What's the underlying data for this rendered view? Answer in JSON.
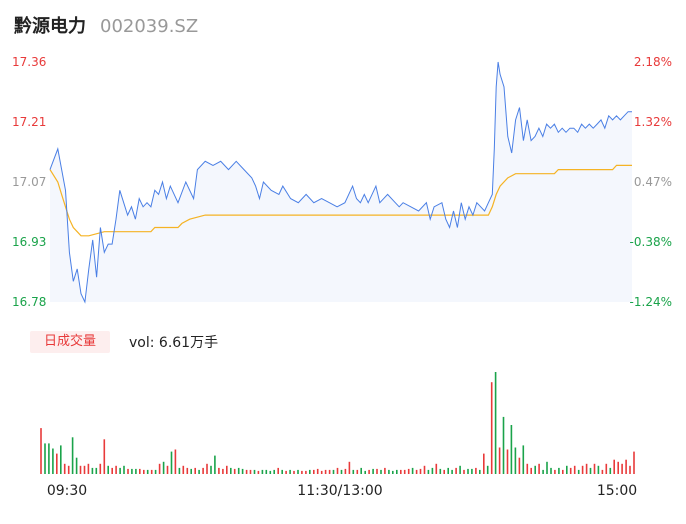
{
  "header": {
    "name": "黔源电力",
    "code": "002039.SZ"
  },
  "colors": {
    "price_line": "#4a7fe5",
    "avg_line": "#f5b324",
    "up": "#e83a3a",
    "down": "#1aa34a",
    "neutral": "#999999",
    "area_fill": "#f4f7fd"
  },
  "chart_data": {
    "type": "line",
    "price_axis": {
      "ylim": [
        16.78,
        17.36
      ],
      "ticks": [
        "17.36",
        "17.21",
        "17.07",
        "16.93",
        "16.78"
      ],
      "pct_ticks": [
        "2.18%",
        "1.32%",
        "0.47%",
        "-0.38%",
        "-1.24%"
      ]
    },
    "time_labels": [
      "09:30",
      "11:30/13:00",
      "15:00"
    ],
    "price_series": [
      [
        0,
        17.1
      ],
      [
        2,
        17.15
      ],
      [
        4,
        17.05
      ],
      [
        5,
        16.9
      ],
      [
        6,
        16.83
      ],
      [
        7,
        16.86
      ],
      [
        8,
        16.8
      ],
      [
        9,
        16.78
      ],
      [
        10,
        16.86
      ],
      [
        11,
        16.93
      ],
      [
        12,
        16.84
      ],
      [
        13,
        16.96
      ],
      [
        14,
        16.9
      ],
      [
        15,
        16.92
      ],
      [
        16,
        16.92
      ],
      [
        17,
        16.98
      ],
      [
        18,
        17.05
      ],
      [
        19,
        17.02
      ],
      [
        20,
        16.99
      ],
      [
        21,
        17.01
      ],
      [
        22,
        16.98
      ],
      [
        23,
        17.03
      ],
      [
        24,
        17.01
      ],
      [
        25,
        17.02
      ],
      [
        26,
        17.01
      ],
      [
        27,
        17.05
      ],
      [
        28,
        17.04
      ],
      [
        29,
        17.07
      ],
      [
        30,
        17.03
      ],
      [
        31,
        17.06
      ],
      [
        33,
        17.02
      ],
      [
        35,
        17.07
      ],
      [
        37,
        17.03
      ],
      [
        38,
        17.1
      ],
      [
        40,
        17.12
      ],
      [
        42,
        17.11
      ],
      [
        44,
        17.12
      ],
      [
        46,
        17.1
      ],
      [
        48,
        17.12
      ],
      [
        50,
        17.1
      ],
      [
        52,
        17.08
      ],
      [
        53,
        17.06
      ],
      [
        54,
        17.03
      ],
      [
        55,
        17.07
      ],
      [
        57,
        17.05
      ],
      [
        59,
        17.04
      ],
      [
        60,
        17.06
      ],
      [
        62,
        17.03
      ],
      [
        64,
        17.02
      ],
      [
        66,
        17.04
      ],
      [
        68,
        17.02
      ],
      [
        70,
        17.03
      ],
      [
        72,
        17.02
      ],
      [
        74,
        17.01
      ],
      [
        76,
        17.02
      ],
      [
        78,
        17.06
      ],
      [
        79,
        17.03
      ],
      [
        80,
        17.02
      ],
      [
        81,
        17.04
      ],
      [
        82,
        17.02
      ],
      [
        84,
        17.06
      ],
      [
        85,
        17.02
      ],
      [
        87,
        17.04
      ],
      [
        89,
        17.02
      ],
      [
        90,
        17.01
      ],
      [
        91,
        17.02
      ],
      [
        93,
        17.01
      ],
      [
        95,
        17.0
      ],
      [
        97,
        17.02
      ],
      [
        98,
        16.98
      ],
      [
        99,
        17.01
      ],
      [
        101,
        17.02
      ],
      [
        102,
        16.98
      ],
      [
        103,
        16.96
      ],
      [
        104,
        17.0
      ],
      [
        105,
        16.96
      ],
      [
        106,
        17.02
      ],
      [
        107,
        16.98
      ],
      [
        108,
        17.01
      ],
      [
        109,
        16.99
      ],
      [
        110,
        17.02
      ],
      [
        111,
        17.01
      ],
      [
        112,
        17.0
      ],
      [
        113,
        17.02
      ],
      [
        114,
        17.04
      ],
      [
        114.5,
        17.15
      ],
      [
        115,
        17.3
      ],
      [
        115.5,
        17.36
      ],
      [
        116,
        17.33
      ],
      [
        117,
        17.3
      ],
      [
        118,
        17.18
      ],
      [
        119,
        17.14
      ],
      [
        120,
        17.22
      ],
      [
        121,
        17.25
      ],
      [
        122,
        17.17
      ],
      [
        123,
        17.22
      ],
      [
        124,
        17.17
      ],
      [
        125,
        17.18
      ],
      [
        126,
        17.2
      ],
      [
        127,
        17.18
      ],
      [
        128,
        17.21
      ],
      [
        129,
        17.2
      ],
      [
        130,
        17.21
      ],
      [
        131,
        17.19
      ],
      [
        132,
        17.2
      ],
      [
        133,
        17.19
      ],
      [
        134,
        17.2
      ],
      [
        135,
        17.2
      ],
      [
        136,
        17.19
      ],
      [
        137,
        17.21
      ],
      [
        138,
        17.2
      ],
      [
        139,
        17.21
      ],
      [
        140,
        17.2
      ],
      [
        141,
        17.21
      ],
      [
        142,
        17.22
      ],
      [
        143,
        17.2
      ],
      [
        144,
        17.23
      ],
      [
        145,
        17.22
      ],
      [
        146,
        17.23
      ],
      [
        147,
        17.22
      ],
      [
        148,
        17.23
      ],
      [
        149,
        17.24
      ],
      [
        150,
        17.24
      ]
    ],
    "avg_series": [
      [
        0,
        17.1
      ],
      [
        2,
        17.07
      ],
      [
        3,
        17.04
      ],
      [
        4,
        17.01
      ],
      [
        5,
        16.98
      ],
      [
        6,
        16.96
      ],
      [
        7,
        16.95
      ],
      [
        8,
        16.94
      ],
      [
        10,
        16.94
      ],
      [
        14,
        16.95
      ],
      [
        26,
        16.95
      ],
      [
        27,
        16.96
      ],
      [
        33,
        16.96
      ],
      [
        34,
        16.97
      ],
      [
        36,
        16.98
      ],
      [
        40,
        16.99
      ],
      [
        113,
        16.99
      ],
      [
        114,
        17.01
      ],
      [
        115,
        17.04
      ],
      [
        116,
        17.06
      ],
      [
        118,
        17.08
      ],
      [
        120,
        17.09
      ],
      [
        130,
        17.09
      ],
      [
        131,
        17.1
      ],
      [
        145,
        17.1
      ],
      [
        146,
        17.11
      ],
      [
        150,
        17.11
      ]
    ],
    "volume_label": "日成交量",
    "volume_text": "vol: 6.61万手",
    "volume": [
      [
        0,
        45,
        "up"
      ],
      [
        1,
        30,
        "down"
      ],
      [
        2,
        30,
        "down"
      ],
      [
        3,
        25,
        "down"
      ],
      [
        4,
        20,
        "up"
      ],
      [
        5,
        28,
        "down"
      ],
      [
        6,
        10,
        "up"
      ],
      [
        7,
        8,
        "up"
      ],
      [
        8,
        36,
        "down"
      ],
      [
        9,
        16,
        "down"
      ],
      [
        10,
        8,
        "up"
      ],
      [
        11,
        8,
        "up"
      ],
      [
        12,
        10,
        "up"
      ],
      [
        13,
        6,
        "down"
      ],
      [
        14,
        6,
        "down"
      ],
      [
        15,
        10,
        "up"
      ],
      [
        16,
        34,
        "up"
      ],
      [
        17,
        8,
        "down"
      ],
      [
        18,
        6,
        "up"
      ],
      [
        19,
        8,
        "up"
      ],
      [
        20,
        6,
        "down"
      ],
      [
        21,
        8,
        "down"
      ],
      [
        22,
        5,
        "up"
      ],
      [
        23,
        5,
        "down"
      ],
      [
        24,
        5,
        "down"
      ],
      [
        25,
        5,
        "up"
      ],
      [
        26,
        4,
        "up"
      ],
      [
        27,
        4,
        "down"
      ],
      [
        28,
        4,
        "up"
      ],
      [
        29,
        4,
        "down"
      ],
      [
        30,
        10,
        "up"
      ],
      [
        31,
        12,
        "down"
      ],
      [
        32,
        8,
        "up"
      ],
      [
        33,
        22,
        "down"
      ],
      [
        34,
        24,
        "up"
      ],
      [
        35,
        6,
        "down"
      ],
      [
        36,
        8,
        "up"
      ],
      [
        37,
        6,
        "up"
      ],
      [
        38,
        5,
        "down"
      ],
      [
        39,
        6,
        "up"
      ],
      [
        40,
        4,
        "down"
      ],
      [
        41,
        6,
        "up"
      ],
      [
        42,
        10,
        "up"
      ],
      [
        43,
        8,
        "down"
      ],
      [
        44,
        18,
        "down"
      ],
      [
        45,
        6,
        "up"
      ],
      [
        46,
        5,
        "up"
      ],
      [
        47,
        8,
        "up"
      ],
      [
        48,
        6,
        "down"
      ],
      [
        49,
        5,
        "up"
      ],
      [
        50,
        6,
        "down"
      ],
      [
        51,
        5,
        "down"
      ],
      [
        52,
        4,
        "up"
      ],
      [
        53,
        4,
        "up"
      ],
      [
        54,
        4,
        "down"
      ],
      [
        55,
        3,
        "up"
      ],
      [
        56,
        4,
        "down"
      ],
      [
        57,
        4,
        "down"
      ],
      [
        58,
        3,
        "down"
      ],
      [
        59,
        4,
        "down"
      ],
      [
        60,
        6,
        "up"
      ],
      [
        61,
        4,
        "down"
      ],
      [
        62,
        3,
        "up"
      ],
      [
        63,
        4,
        "down"
      ],
      [
        64,
        3,
        "up"
      ],
      [
        65,
        4,
        "down"
      ],
      [
        66,
        3,
        "up"
      ],
      [
        67,
        3,
        "up"
      ],
      [
        68,
        4,
        "down"
      ],
      [
        69,
        4,
        "up"
      ],
      [
        70,
        5,
        "up"
      ],
      [
        71,
        3,
        "up"
      ],
      [
        72,
        4,
        "up"
      ],
      [
        73,
        4,
        "up"
      ],
      [
        74,
        4,
        "down"
      ],
      [
        75,
        6,
        "up"
      ],
      [
        76,
        4,
        "down"
      ],
      [
        77,
        5,
        "up"
      ],
      [
        78,
        12,
        "up"
      ],
      [
        79,
        4,
        "down"
      ],
      [
        80,
        4,
        "up"
      ],
      [
        81,
        6,
        "down"
      ],
      [
        82,
        3,
        "down"
      ],
      [
        83,
        4,
        "up"
      ],
      [
        84,
        5,
        "down"
      ],
      [
        85,
        5,
        "up"
      ],
      [
        86,
        4,
        "down"
      ],
      [
        87,
        6,
        "up"
      ],
      [
        88,
        4,
        "down"
      ],
      [
        89,
        3,
        "down"
      ],
      [
        90,
        4,
        "down"
      ],
      [
        91,
        4,
        "up"
      ],
      [
        92,
        4,
        "up"
      ],
      [
        93,
        5,
        "up"
      ],
      [
        94,
        6,
        "down"
      ],
      [
        95,
        4,
        "up"
      ],
      [
        96,
        5,
        "up"
      ],
      [
        97,
        8,
        "up"
      ],
      [
        98,
        4,
        "down"
      ],
      [
        99,
        6,
        "down"
      ],
      [
        100,
        10,
        "up"
      ],
      [
        101,
        5,
        "down"
      ],
      [
        102,
        4,
        "up"
      ],
      [
        103,
        6,
        "down"
      ],
      [
        104,
        4,
        "down"
      ],
      [
        105,
        6,
        "up"
      ],
      [
        106,
        8,
        "down"
      ],
      [
        107,
        4,
        "up"
      ],
      [
        108,
        5,
        "down"
      ],
      [
        109,
        5,
        "down"
      ],
      [
        110,
        6,
        "up"
      ],
      [
        111,
        4,
        "down"
      ],
      [
        112,
        20,
        "up"
      ],
      [
        113,
        8,
        "down"
      ],
      [
        114,
        90,
        "up"
      ],
      [
        115,
        100,
        "down"
      ],
      [
        116,
        26,
        "up"
      ],
      [
        117,
        56,
        "down"
      ],
      [
        118,
        24,
        "up"
      ],
      [
        119,
        48,
        "down"
      ],
      [
        120,
        26,
        "down"
      ],
      [
        121,
        16,
        "up"
      ],
      [
        122,
        28,
        "down"
      ],
      [
        123,
        10,
        "up"
      ],
      [
        124,
        6,
        "up"
      ],
      [
        125,
        8,
        "down"
      ],
      [
        126,
        10,
        "up"
      ],
      [
        127,
        4,
        "down"
      ],
      [
        128,
        12,
        "down"
      ],
      [
        129,
        6,
        "down"
      ],
      [
        130,
        4,
        "up"
      ],
      [
        131,
        6,
        "down"
      ],
      [
        132,
        4,
        "up"
      ],
      [
        133,
        8,
        "down"
      ],
      [
        134,
        6,
        "up"
      ],
      [
        135,
        8,
        "up"
      ],
      [
        136,
        4,
        "down"
      ],
      [
        137,
        8,
        "up"
      ],
      [
        138,
        10,
        "up"
      ],
      [
        139,
        6,
        "down"
      ],
      [
        140,
        10,
        "up"
      ],
      [
        141,
        8,
        "down"
      ],
      [
        142,
        4,
        "up"
      ],
      [
        143,
        10,
        "up"
      ],
      [
        144,
        6,
        "down"
      ],
      [
        145,
        14,
        "up"
      ],
      [
        146,
        12,
        "up"
      ],
      [
        147,
        10,
        "up"
      ],
      [
        148,
        14,
        "up"
      ],
      [
        149,
        8,
        "up"
      ],
      [
        150,
        22,
        "up"
      ]
    ]
  }
}
